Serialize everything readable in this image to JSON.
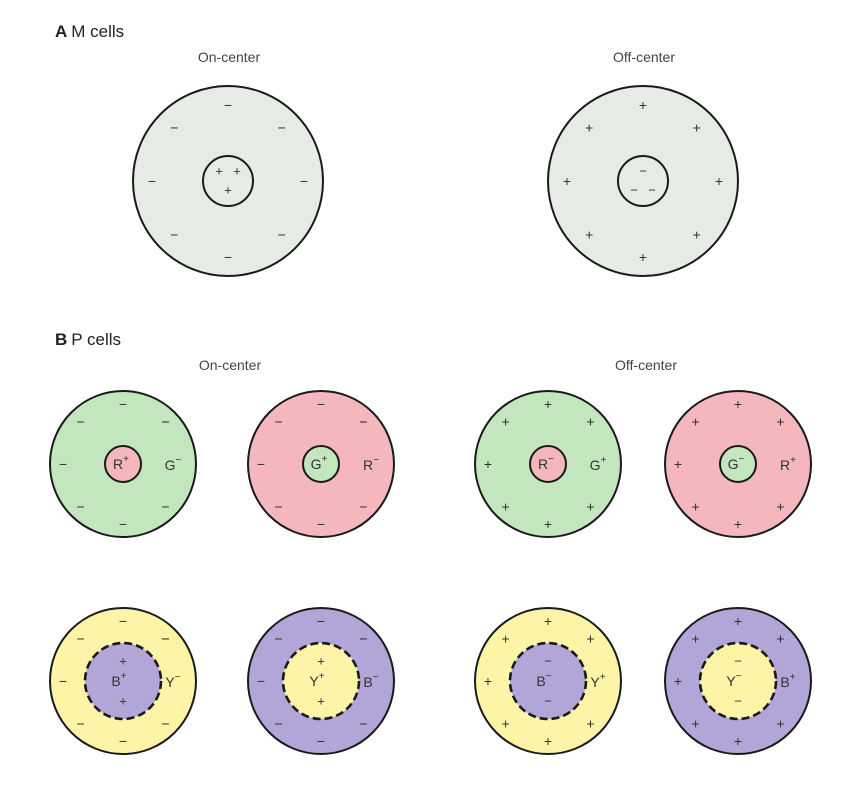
{
  "sections": {
    "a": {
      "letter": "A",
      "title": "M cells"
    },
    "b": {
      "letter": "B",
      "title": "P cells"
    }
  },
  "columns": {
    "on": "On-center",
    "off": "Off-center"
  },
  "colors": {
    "gray": "#e7ebe6",
    "green": "#c4e6be",
    "red": "#f4b7be",
    "yellow": "#fdf4a8",
    "purple": "#b2a6d8",
    "stroke": "#1a1a1a"
  },
  "m_cells": [
    {
      "id": "m-on",
      "fill": "gray",
      "center_fill": "gray",
      "surround_sign": "−",
      "center_signs": [
        "+",
        "+",
        "+"
      ]
    },
    {
      "id": "m-off",
      "fill": "gray",
      "center_fill": "gray",
      "surround_sign": "+",
      "center_signs": [
        "−",
        "−",
        "−"
      ]
    }
  ],
  "p_cells": [
    {
      "id": "p-on-rg",
      "surround": "green",
      "center": "red",
      "center_label": "R",
      "center_sup": "+",
      "surround_label": "G",
      "surround_sup": "−",
      "surround_sign": "−",
      "dashed": false
    },
    {
      "id": "p-on-gr",
      "surround": "red",
      "center": "green",
      "center_label": "G",
      "center_sup": "+",
      "surround_label": "R",
      "surround_sup": "−",
      "surround_sign": "−",
      "dashed": false
    },
    {
      "id": "p-off-rg",
      "surround": "green",
      "center": "red",
      "center_label": "R",
      "center_sup": "−",
      "surround_label": "G",
      "surround_sup": "+",
      "surround_sign": "+",
      "dashed": false
    },
    {
      "id": "p-off-gr",
      "surround": "red",
      "center": "green",
      "center_label": "G",
      "center_sup": "−",
      "surround_label": "R",
      "surround_sup": "+",
      "surround_sign": "+",
      "dashed": false
    },
    {
      "id": "p-on-by",
      "surround": "yellow",
      "center": "purple",
      "center_label": "B",
      "center_sup": "+",
      "surround_label": "Y",
      "surround_sup": "−",
      "surround_sign": "−",
      "center_sign": "+",
      "dashed": true
    },
    {
      "id": "p-on-yb",
      "surround": "purple",
      "center": "yellow",
      "center_label": "Y",
      "center_sup": "+",
      "surround_label": "B",
      "surround_sup": "−",
      "surround_sign": "−",
      "center_sign": "+",
      "dashed": true
    },
    {
      "id": "p-off-by",
      "surround": "yellow",
      "center": "purple",
      "center_label": "B",
      "center_sup": "−",
      "surround_label": "Y",
      "surround_sup": "+",
      "surround_sign": "+",
      "center_sign": "−",
      "dashed": true
    },
    {
      "id": "p-off-yb",
      "surround": "purple",
      "center": "yellow",
      "center_label": "Y",
      "center_sup": "−",
      "surround_label": "B",
      "surround_sup": "+",
      "surround_sign": "+",
      "center_sign": "−",
      "dashed": true
    }
  ]
}
